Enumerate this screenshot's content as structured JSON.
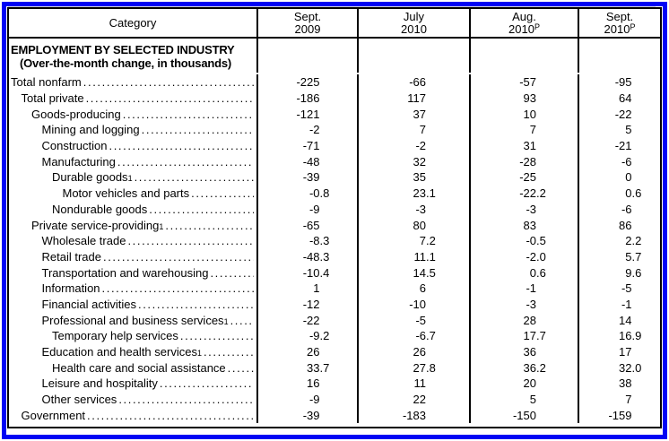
{
  "colors": {
    "frame_blue": "#0004f4",
    "table_border": "#000000",
    "background": "#ffffff"
  },
  "header": {
    "category": "Category",
    "columns": [
      {
        "line1": "Sept.",
        "line2": "2009",
        "sup": ""
      },
      {
        "line1": "July",
        "line2": "2010",
        "sup": ""
      },
      {
        "line1": "Aug.",
        "line2": "2010",
        "sup": "P"
      },
      {
        "line1": "Sept.",
        "line2": "2010",
        "sup": "P"
      }
    ]
  },
  "section": {
    "title": "EMPLOYMENT BY SELECTED INDUSTRY",
    "subtitle": "(Over-the-month change, in thousands)"
  },
  "table": {
    "rows": [
      {
        "label": "Total nonfarm",
        "sup": "",
        "indent": 0,
        "values": [
          "-225",
          "-66",
          "-57",
          "-95"
        ]
      },
      {
        "label": "Total private",
        "sup": "",
        "indent": 1,
        "values": [
          "-186",
          "117",
          "93",
          "64"
        ]
      },
      {
        "label": "Goods-producing",
        "sup": "",
        "indent": 2,
        "values": [
          "-121",
          "37",
          "10",
          "-22"
        ]
      },
      {
        "label": "Mining and logging",
        "sup": "",
        "indent": 3,
        "values": [
          "-2",
          "7",
          "7",
          "5"
        ]
      },
      {
        "label": "Construction",
        "sup": "",
        "indent": 3,
        "values": [
          "-71",
          "-2",
          "31",
          "-21"
        ]
      },
      {
        "label": "Manufacturing",
        "sup": "",
        "indent": 3,
        "values": [
          "-48",
          "32",
          "-28",
          "-6"
        ]
      },
      {
        "label": "Durable goods",
        "sup": "1",
        "indent": 4,
        "values": [
          "-39",
          "35",
          "-25",
          "0"
        ]
      },
      {
        "label": "Motor vehicles and parts",
        "sup": "",
        "indent": 5,
        "values": [
          "-0.8",
          "23.1",
          "-22.2",
          "0.6"
        ]
      },
      {
        "label": "Nondurable goods",
        "sup": "",
        "indent": 4,
        "values": [
          "-9",
          "-3",
          "-3",
          "-6"
        ]
      },
      {
        "label": "Private service-providing",
        "sup": "1",
        "indent": 2,
        "values": [
          "-65",
          "80",
          "83",
          "86"
        ]
      },
      {
        "label": "Wholesale trade",
        "sup": "",
        "indent": 3,
        "values": [
          "-8.3",
          "7.2",
          "-0.5",
          "2.2"
        ]
      },
      {
        "label": "Retail trade",
        "sup": "",
        "indent": 3,
        "values": [
          "-48.3",
          "11.1",
          "-2.0",
          "5.7"
        ]
      },
      {
        "label": "Transportation and warehousing",
        "sup": "",
        "indent": 3,
        "values": [
          "-10.4",
          "14.5",
          "0.6",
          "9.6"
        ]
      },
      {
        "label": "Information",
        "sup": "",
        "indent": 3,
        "values": [
          "1",
          "6",
          "-1",
          "-5"
        ]
      },
      {
        "label": "Financial activities",
        "sup": "",
        "indent": 3,
        "values": [
          "-12",
          "-10",
          "-3",
          "-1"
        ]
      },
      {
        "label": "Professional and business services",
        "sup": "1",
        "indent": 3,
        "values": [
          "-22",
          "-5",
          "28",
          "14"
        ]
      },
      {
        "label": "Temporary help services",
        "sup": "",
        "indent": 4,
        "values": [
          "-9.2",
          "-6.7",
          "17.7",
          "16.9"
        ]
      },
      {
        "label": "Education and health services",
        "sup": "1",
        "indent": 3,
        "values": [
          "26",
          "26",
          "36",
          "17"
        ]
      },
      {
        "label": "Health care and social assistance",
        "sup": "",
        "indent": 4,
        "values": [
          "33.7",
          "27.8",
          "36.2",
          "32.0"
        ]
      },
      {
        "label": "Leisure and hospitality",
        "sup": "",
        "indent": 3,
        "values": [
          "16",
          "11",
          "20",
          "38"
        ]
      },
      {
        "label": "Other services",
        "sup": "",
        "indent": 3,
        "values": [
          "-9",
          "22",
          "5",
          "7"
        ]
      },
      {
        "label": "Government",
        "sup": "",
        "indent": 1,
        "values": [
          "-39",
          "-183",
          "-150",
          "-159"
        ]
      }
    ]
  },
  "chart_data": {
    "type": "table",
    "title": "EMPLOYMENT BY SELECTED INDUSTRY (Over-the-month change, in thousands)",
    "columns": [
      "Sept. 2009",
      "July 2010",
      "Aug. 2010P",
      "Sept. 2010P"
    ],
    "categories": [
      "Total nonfarm",
      "Total private",
      "Goods-producing",
      "Mining and logging",
      "Construction",
      "Manufacturing",
      "Durable goods",
      "Motor vehicles and parts",
      "Nondurable goods",
      "Private service-providing",
      "Wholesale trade",
      "Retail trade",
      "Transportation and warehousing",
      "Information",
      "Financial activities",
      "Professional and business services",
      "Temporary help services",
      "Education and health services",
      "Health care and social assistance",
      "Leisure and hospitality",
      "Other services",
      "Government"
    ],
    "series": [
      {
        "name": "Sept. 2009",
        "values": [
          -225,
          -186,
          -121,
          -2,
          -71,
          -48,
          -39,
          -0.8,
          -9,
          -65,
          -8.3,
          -48.3,
          -10.4,
          1,
          -12,
          -22,
          -9.2,
          26,
          33.7,
          16,
          -9,
          -39
        ]
      },
      {
        "name": "July 2010",
        "values": [
          -66,
          117,
          37,
          7,
          -2,
          32,
          35,
          23.1,
          -3,
          80,
          7.2,
          11.1,
          14.5,
          6,
          -10,
          -5,
          -6.7,
          26,
          27.8,
          11,
          22,
          -183
        ]
      },
      {
        "name": "Aug. 2010P",
        "values": [
          -57,
          93,
          10,
          7,
          31,
          -28,
          -25,
          -22.2,
          -3,
          83,
          -0.5,
          -2.0,
          0.6,
          -1,
          -3,
          28,
          17.7,
          36,
          36.2,
          20,
          5,
          -150
        ]
      },
      {
        "name": "Sept. 2010P",
        "values": [
          -95,
          64,
          -22,
          5,
          -21,
          -6,
          0,
          0.6,
          -6,
          86,
          2.2,
          5.7,
          9.6,
          -5,
          -1,
          14,
          16.9,
          17,
          32.0,
          38,
          7,
          -159
        ]
      }
    ]
  }
}
